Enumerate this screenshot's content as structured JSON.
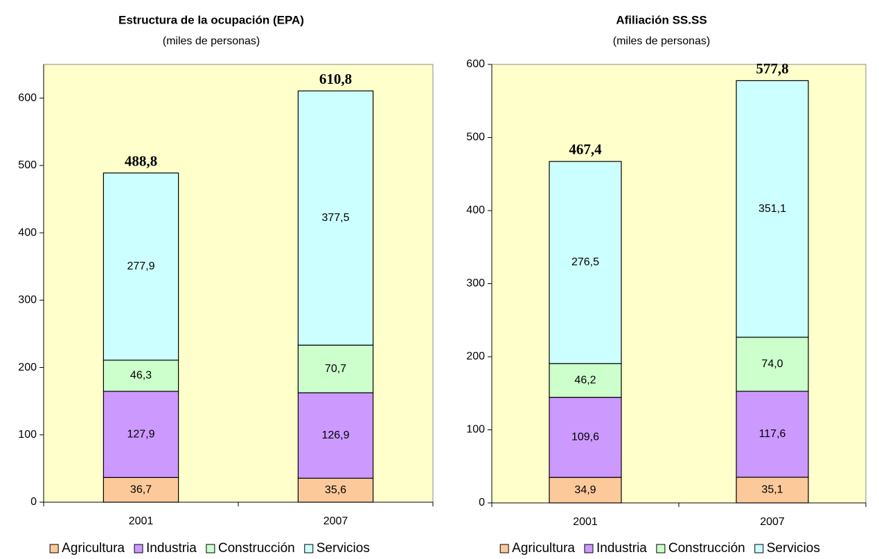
{
  "chart_data": [
    {
      "type": "stacked_bar",
      "title": "Estructura de la ocupación (EPA)",
      "subtitle": "(miles de personas)",
      "categories": [
        "2001",
        "2007"
      ],
      "series": [
        {
          "name": "Agricultura",
          "color": "#fcc99b",
          "values": [
            36.7,
            35.6
          ],
          "value_labels": [
            "36,7",
            "35,6"
          ]
        },
        {
          "name": "Industria",
          "color": "#cc99ff",
          "values": [
            127.9,
            126.9
          ],
          "value_labels": [
            "127,9",
            "126,9"
          ]
        },
        {
          "name": "Construcción",
          "color": "#ccffcc",
          "values": [
            46.3,
            70.7
          ],
          "value_labels": [
            "46,3",
            "70,7"
          ]
        },
        {
          "name": "Servicios",
          "color": "#ccffff",
          "values": [
            277.9,
            377.5
          ],
          "value_labels": [
            "277,9",
            "377,5"
          ]
        }
      ],
      "totals": [
        488.8,
        610.8
      ],
      "total_labels": [
        "488,8",
        "610,8"
      ],
      "ylim": [
        0,
        650
      ],
      "yticks": [
        0,
        100,
        200,
        300,
        400,
        500,
        600
      ],
      "legend": "bottom",
      "plot_background": "#ffffcc"
    },
    {
      "type": "stacked_bar",
      "title": "Afiliación SS.SS",
      "subtitle": "(miles de personas)",
      "categories": [
        "2001",
        "2007"
      ],
      "series": [
        {
          "name": "Agricultura",
          "color": "#fcc99b",
          "values": [
            34.9,
            35.1
          ],
          "value_labels": [
            "34,9",
            "35,1"
          ]
        },
        {
          "name": "Industria",
          "color": "#cc99ff",
          "values": [
            109.6,
            117.6
          ],
          "value_labels": [
            "109,6",
            "117,6"
          ]
        },
        {
          "name": "Construcción",
          "color": "#ccffcc",
          "values": [
            46.2,
            74.0
          ],
          "value_labels": [
            "46,2",
            "74,0"
          ]
        },
        {
          "name": "Servicios",
          "color": "#ccffff",
          "values": [
            276.5,
            351.1
          ],
          "value_labels": [
            "276,5",
            "351,1"
          ]
        }
      ],
      "totals": [
        467.4,
        577.8
      ],
      "total_labels": [
        "467,4",
        "577,8"
      ],
      "ylim": [
        0,
        600
      ],
      "yticks": [
        0,
        100,
        200,
        300,
        400,
        500,
        600
      ],
      "legend": "bottom",
      "plot_background": "#ffffcc"
    }
  ]
}
